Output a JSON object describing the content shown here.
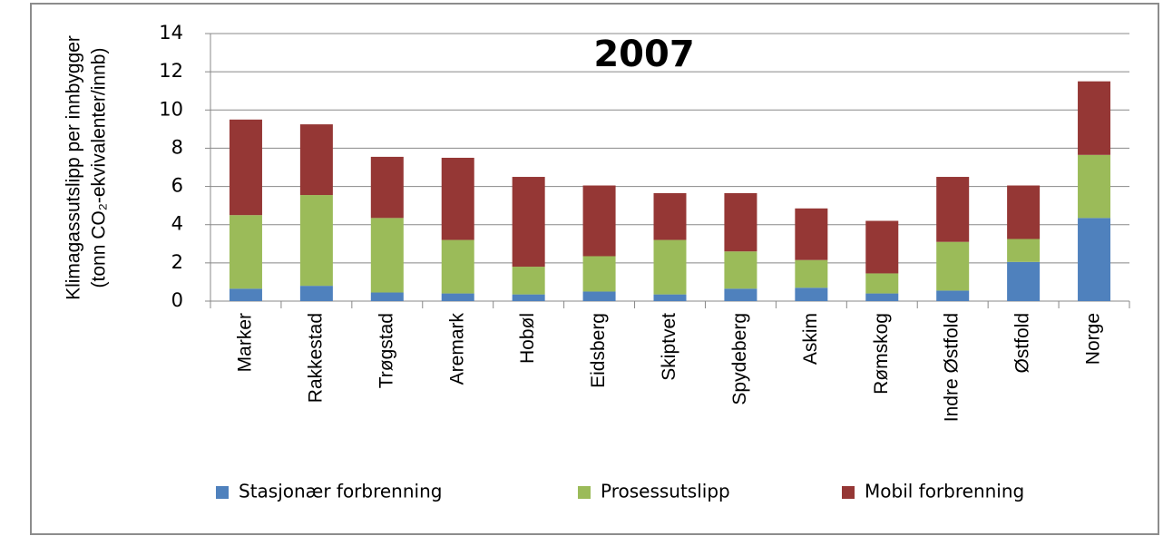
{
  "chart_data": {
    "type": "stacked_bar",
    "title": "2007",
    "y_label_lines": [
      "Klimagassutslipp per innbygger",
      "(tonn CO₂-ekvivalenter/innb)"
    ],
    "categories": [
      "Marker",
      "Rakkestad",
      "Trøgstad",
      "Aremark",
      "Hobøl",
      "Eidsberg",
      "Skiptvet",
      "Spydeberg",
      "Askim",
      "Rømskog",
      "Indre Østfold",
      "Østfold",
      "Norge"
    ],
    "series": [
      {
        "name": "Stasjonær forbrenning",
        "color": "#4f81bd",
        "values": [
          0.65,
          0.8,
          0.45,
          0.4,
          0.35,
          0.5,
          0.35,
          0.65,
          0.7,
          0.4,
          0.55,
          2.05,
          4.35
        ]
      },
      {
        "name": "Prosessutslipp",
        "color": "#9bbb59",
        "values": [
          3.85,
          4.75,
          3.9,
          2.8,
          1.45,
          1.85,
          2.85,
          1.95,
          1.45,
          1.05,
          2.55,
          1.2,
          3.3
        ]
      },
      {
        "name": "Mobil forbrenning",
        "color": "#953735",
        "values": [
          5.0,
          3.7,
          3.2,
          4.3,
          4.7,
          3.7,
          2.45,
          3.05,
          2.7,
          2.75,
          3.4,
          2.8,
          3.85
        ]
      }
    ],
    "ylim": [
      0,
      14
    ],
    "yticks": [
      0,
      2,
      4,
      6,
      8,
      10,
      12,
      14
    ],
    "grid": true,
    "legend": "bottom"
  }
}
